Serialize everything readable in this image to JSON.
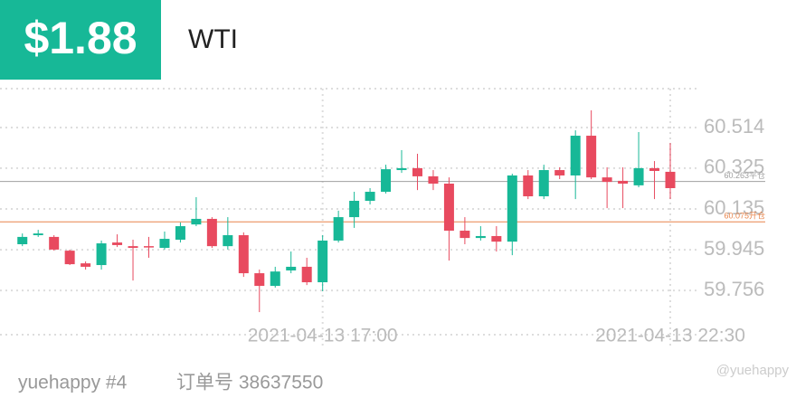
{
  "header": {
    "price": "$1.88",
    "symbol": "WTI"
  },
  "footer": {
    "user": "yuehappy #4",
    "order": "订单号 38637550",
    "watermark": "@yuehappy"
  },
  "chart_data": {
    "type": "candlestick",
    "categories": [
      null,
      null,
      null,
      null,
      null,
      null,
      null,
      null,
      null,
      null,
      null,
      null,
      null,
      null,
      null,
      null,
      null,
      null,
      null,
      "2021-04-13 17:00",
      null,
      null,
      null,
      null,
      null,
      null,
      null,
      null,
      null,
      null,
      null,
      null,
      null,
      null,
      null,
      null,
      null,
      null,
      null,
      null,
      null,
      "2021-04-13 22:30"
    ],
    "open": [
      59.971,
      60.013,
      60.005,
      59.941,
      59.882,
      59.874,
      59.979,
      59.962,
      59.962,
      59.954,
      59.992,
      60.063,
      60.089,
      59.962,
      60.013,
      59.836,
      59.777,
      59.849,
      59.866,
      59.794,
      59.988,
      60.097,
      60.173,
      60.215,
      60.316,
      60.325,
      60.287,
      60.253,
      60.034,
      60.0,
      60.009,
      59.983,
      60.291,
      60.194,
      60.316,
      60.291,
      60.476,
      60.282,
      60.266,
      60.245,
      60.325,
      60.308
    ],
    "high": [
      60.021,
      60.038,
      60.013,
      59.946,
      59.891,
      59.988,
      60.017,
      59.992,
      60.005,
      60.03,
      60.072,
      60.19,
      60.097,
      60.097,
      60.026,
      59.853,
      59.866,
      59.937,
      59.908,
      60.013,
      60.127,
      60.215,
      60.232,
      60.341,
      60.409,
      60.392,
      60.316,
      60.282,
      60.097,
      60.055,
      60.055,
      60.299,
      60.316,
      60.341,
      60.329,
      60.501,
      60.594,
      60.329,
      60.329,
      60.493,
      60.358,
      60.442
    ],
    "low": [
      59.962,
      60.005,
      59.941,
      59.874,
      59.853,
      59.853,
      59.958,
      59.802,
      59.908,
      59.946,
      59.979,
      60.055,
      59.954,
      59.946,
      59.819,
      59.655,
      59.769,
      59.836,
      59.781,
      59.752,
      59.979,
      60.047,
      60.156,
      60.207,
      60.303,
      60.223,
      60.223,
      59.895,
      59.971,
      59.988,
      59.937,
      59.92,
      60.181,
      60.181,
      60.274,
      60.181,
      60.274,
      60.139,
      60.139,
      60.236,
      60.181,
      60.181
    ],
    "close": [
      60.005,
      60.021,
      59.946,
      59.878,
      59.866,
      59.975,
      59.967,
      59.954,
      59.958,
      59.996,
      60.055,
      60.089,
      59.962,
      60.013,
      59.836,
      59.777,
      59.844,
      59.866,
      59.794,
      59.988,
      60.097,
      60.173,
      60.215,
      60.32,
      60.325,
      60.287,
      60.253,
      60.034,
      60.0,
      60.009,
      59.983,
      60.291,
      60.194,
      60.316,
      60.291,
      60.476,
      60.282,
      60.261,
      60.253,
      60.325,
      60.312,
      60.232
    ],
    "up_color": "#17b897",
    "down_color": "#e84a5f",
    "ylim": [
      59.55,
      60.695
    ],
    "yticks": [
      60.514,
      60.325,
      60.135,
      59.945,
      59.756
    ],
    "grid": true,
    "reference_lines": [
      {
        "value": 60.263,
        "label": "60.263平仓",
        "color": "#a0a0a0"
      },
      {
        "value": 60.075,
        "label": "60.075开仓",
        "color": "#e8844a"
      }
    ]
  }
}
